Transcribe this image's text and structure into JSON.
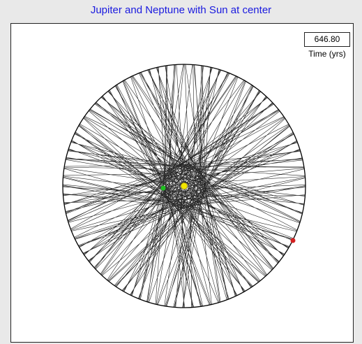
{
  "title": "Jupiter and Neptune with Sun at center",
  "time": {
    "value": "646.80",
    "label": "Time (yrs)"
  }
}
